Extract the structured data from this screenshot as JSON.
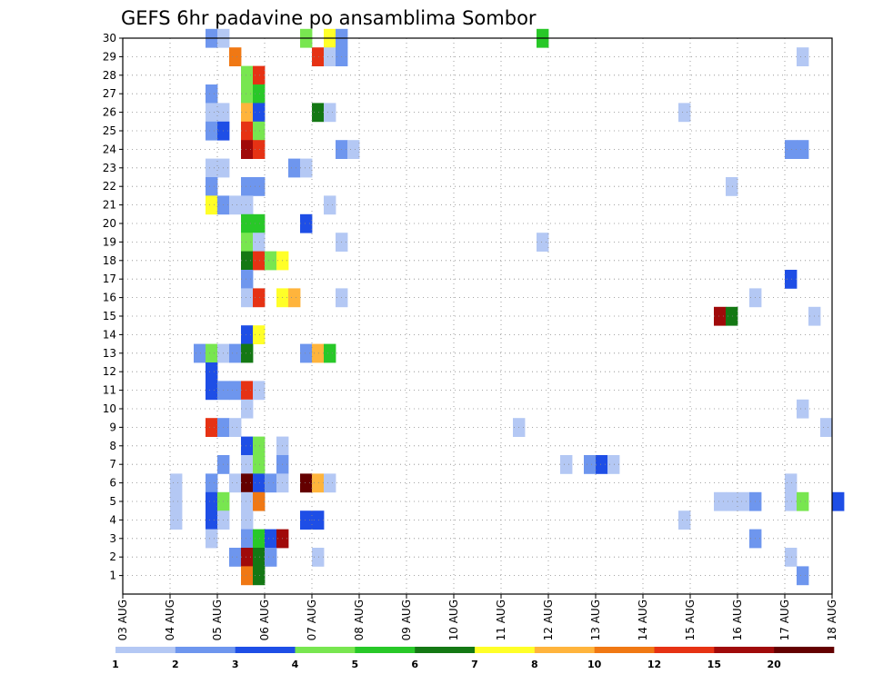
{
  "chart_data": {
    "type": "heatmap",
    "title": "GEFS 6hr padavine po ansamblima Sombor",
    "xlabel": "",
    "ylabel": "",
    "x_tick_labels": [
      "03 AUG",
      "04 AUG",
      "05 AUG",
      "06 AUG",
      "07 AUG",
      "08 AUG",
      "09 AUG",
      "10 AUG",
      "11 AUG",
      "12 AUG",
      "13 AUG",
      "14 AUG",
      "15 AUG",
      "16 AUG",
      "17 AUG",
      "18 AUG"
    ],
    "y_tick_labels": [
      "1",
      "2",
      "3",
      "4",
      "5",
      "6",
      "7",
      "8",
      "9",
      "10",
      "11",
      "12",
      "13",
      "14",
      "15",
      "16",
      "17",
      "18",
      "19",
      "20",
      "21",
      "22",
      "23",
      "24",
      "25",
      "26",
      "27",
      "28",
      "29",
      "30"
    ],
    "x_range_days": [
      0,
      15
    ],
    "y_range": [
      0,
      30
    ],
    "grid": "dotted",
    "legend": {
      "placement": "bottom",
      "boundaries": [
        "1",
        "2",
        "3",
        "4",
        "5",
        "6",
        "7",
        "8",
        "10",
        "12",
        "15",
        "20"
      ],
      "colors": [
        "#b4c8f4",
        "#6e96ee",
        "#1e4ee6",
        "#78e650",
        "#28c828",
        "#147814",
        "#ffff28",
        "#ffb43c",
        "#f07814",
        "#e63214",
        "#a00a0a",
        "#640000"
      ]
    },
    "cells": [
      [
        30,
        1.875,
        1
      ],
      [
        30,
        2.125,
        0
      ],
      [
        30,
        3.875,
        3
      ],
      [
        30,
        4.375,
        6
      ],
      [
        30,
        4.625,
        1
      ],
      [
        30,
        8.875,
        4
      ],
      [
        29,
        2.375,
        8
      ],
      [
        29,
        4.125,
        9
      ],
      [
        29,
        4.375,
        0
      ],
      [
        29,
        4.625,
        1
      ],
      [
        29,
        14.375,
        0
      ],
      [
        28,
        2.625,
        3
      ],
      [
        28,
        2.875,
        9
      ],
      [
        27,
        1.875,
        1
      ],
      [
        27,
        2.625,
        3
      ],
      [
        27,
        2.875,
        4
      ],
      [
        26,
        1.875,
        0
      ],
      [
        26,
        2.125,
        0
      ],
      [
        26,
        2.625,
        7
      ],
      [
        26,
        2.875,
        2
      ],
      [
        26,
        4.125,
        5
      ],
      [
        26,
        4.375,
        0
      ],
      [
        26,
        11.875,
        0
      ],
      [
        25,
        1.875,
        1
      ],
      [
        25,
        2.125,
        2
      ],
      [
        25,
        2.625,
        9
      ],
      [
        25,
        2.875,
        3
      ],
      [
        24,
        2.625,
        10
      ],
      [
        24,
        2.875,
        9
      ],
      [
        24,
        4.625,
        1
      ],
      [
        24,
        4.875,
        0
      ],
      [
        24,
        14.125,
        1
      ],
      [
        24,
        14.375,
        1
      ],
      [
        23,
        1.875,
        0
      ],
      [
        23,
        2.125,
        0
      ],
      [
        23,
        3.625,
        1
      ],
      [
        23,
        3.875,
        0
      ],
      [
        22,
        1.875,
        1
      ],
      [
        22,
        2.625,
        1
      ],
      [
        22,
        2.875,
        1
      ],
      [
        22,
        12.875,
        0
      ],
      [
        21,
        1.875,
        6
      ],
      [
        21,
        2.125,
        1
      ],
      [
        21,
        2.375,
        0
      ],
      [
        21,
        2.625,
        0
      ],
      [
        21,
        4.375,
        0
      ],
      [
        20,
        2.625,
        4
      ],
      [
        20,
        2.875,
        4
      ],
      [
        20,
        3.875,
        2
      ],
      [
        19,
        2.625,
        3
      ],
      [
        19,
        2.875,
        0
      ],
      [
        19,
        4.625,
        0
      ],
      [
        19,
        8.875,
        0
      ],
      [
        18,
        2.625,
        5
      ],
      [
        18,
        2.875,
        9
      ],
      [
        18,
        3.125,
        3
      ],
      [
        18,
        3.375,
        6
      ],
      [
        17,
        2.625,
        1
      ],
      [
        17,
        14.125,
        2
      ],
      [
        16,
        2.625,
        0
      ],
      [
        16,
        2.875,
        9
      ],
      [
        16,
        3.375,
        6
      ],
      [
        16,
        3.625,
        7
      ],
      [
        16,
        4.625,
        0
      ],
      [
        16,
        13.375,
        0
      ],
      [
        15,
        12.625,
        10
      ],
      [
        15,
        12.875,
        5
      ],
      [
        15,
        14.625,
        0
      ],
      [
        14,
        2.625,
        2
      ],
      [
        14,
        2.875,
        6
      ],
      [
        13,
        1.625,
        1
      ],
      [
        13,
        1.875,
        3
      ],
      [
        13,
        2.125,
        0
      ],
      [
        13,
        2.375,
        1
      ],
      [
        13,
        2.625,
        5
      ],
      [
        13,
        3.875,
        1
      ],
      [
        13,
        4.125,
        7
      ],
      [
        13,
        4.375,
        4
      ],
      [
        12,
        1.875,
        2
      ],
      [
        11,
        1.875,
        2
      ],
      [
        11,
        2.125,
        1
      ],
      [
        11,
        2.375,
        1
      ],
      [
        11,
        2.625,
        9
      ],
      [
        11,
        2.875,
        0
      ],
      [
        10,
        2.625,
        0
      ],
      [
        10,
        14.375,
        0
      ],
      [
        9,
        1.875,
        9
      ],
      [
        9,
        2.125,
        1
      ],
      [
        9,
        2.375,
        0
      ],
      [
        9,
        8.375,
        0
      ],
      [
        9,
        14.875,
        0
      ],
      [
        8,
        2.625,
        2
      ],
      [
        8,
        2.875,
        3
      ],
      [
        8,
        3.375,
        0
      ],
      [
        7,
        2.125,
        1
      ],
      [
        7,
        2.625,
        0
      ],
      [
        7,
        2.875,
        3
      ],
      [
        7,
        3.375,
        1
      ],
      [
        7,
        9.375,
        0
      ],
      [
        7,
        9.875,
        1
      ],
      [
        7,
        10.125,
        2
      ],
      [
        7,
        10.375,
        0
      ],
      [
        6,
        1.125,
        0
      ],
      [
        6,
        1.875,
        1
      ],
      [
        6,
        2.375,
        0
      ],
      [
        6,
        2.625,
        11
      ],
      [
        6,
        2.875,
        2
      ],
      [
        6,
        3.125,
        1
      ],
      [
        6,
        3.375,
        0
      ],
      [
        6,
        3.875,
        11
      ],
      [
        6,
        4.125,
        7
      ],
      [
        6,
        4.375,
        0
      ],
      [
        6,
        14.125,
        0
      ],
      [
        5,
        1.125,
        0
      ],
      [
        5,
        1.875,
        2
      ],
      [
        5,
        2.125,
        3
      ],
      [
        5,
        2.625,
        0
      ],
      [
        5,
        2.875,
        8
      ],
      [
        5,
        12.625,
        0
      ],
      [
        5,
        12.875,
        0
      ],
      [
        5,
        13.125,
        0
      ],
      [
        5,
        13.375,
        1
      ],
      [
        5,
        14.125,
        0
      ],
      [
        5,
        14.375,
        3
      ],
      [
        5,
        15.125,
        2
      ],
      [
        4,
        1.125,
        0
      ],
      [
        4,
        1.875,
        2
      ],
      [
        4,
        2.125,
        0
      ],
      [
        4,
        2.625,
        0
      ],
      [
        4,
        3.875,
        2
      ],
      [
        4,
        4.125,
        2
      ],
      [
        4,
        11.875,
        0
      ],
      [
        3,
        1.875,
        0
      ],
      [
        3,
        2.625,
        1
      ],
      [
        3,
        2.875,
        4
      ],
      [
        3,
        3.125,
        2
      ],
      [
        3,
        3.375,
        10
      ],
      [
        3,
        13.375,
        1
      ],
      [
        2,
        2.375,
        1
      ],
      [
        2,
        2.625,
        10
      ],
      [
        2,
        2.875,
        5
      ],
      [
        2,
        3.125,
        1
      ],
      [
        2,
        4.125,
        0
      ],
      [
        2,
        14.125,
        0
      ],
      [
        1,
        2.625,
        8
      ],
      [
        1,
        2.875,
        5
      ],
      [
        1,
        14.375,
        1
      ]
    ]
  }
}
